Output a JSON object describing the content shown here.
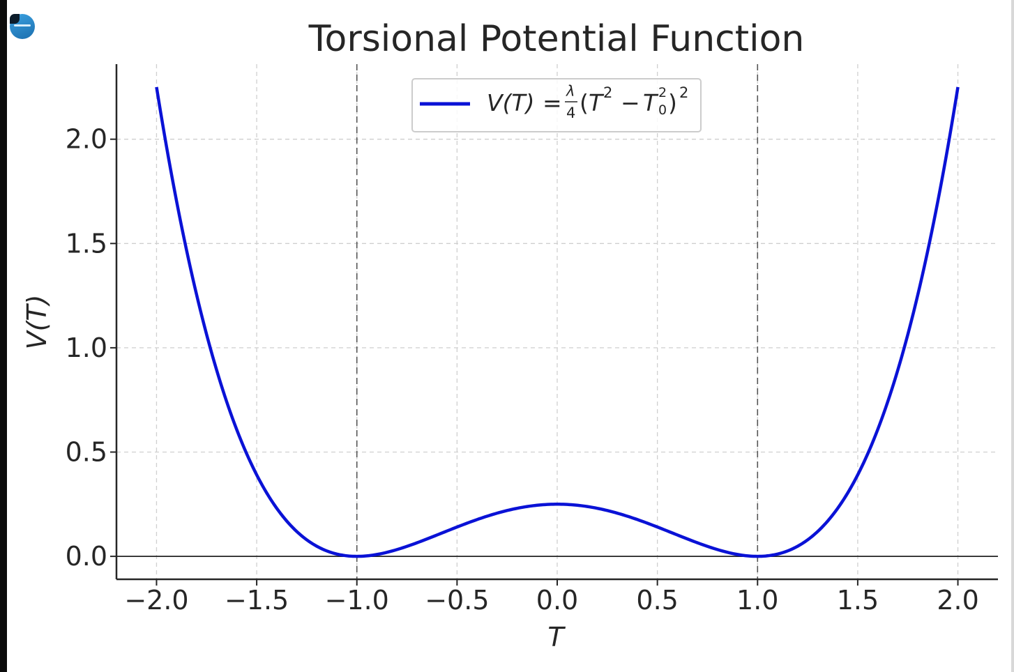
{
  "chart_data": {
    "type": "line",
    "title": "Torsional Potential Function",
    "xlabel": "T",
    "ylabel": "V(T)",
    "xlim": [
      -2.2,
      2.2
    ],
    "ylim": [
      -0.11,
      2.36
    ],
    "xticks": [
      -2.0,
      -1.5,
      -1.0,
      -0.5,
      0.0,
      0.5,
      1.0,
      1.5,
      2.0
    ],
    "xtick_labels": [
      "−2.0",
      "−1.5",
      "−1.0",
      "−0.5",
      "0.0",
      "0.5",
      "1.0",
      "1.5",
      "2.0"
    ],
    "yticks": [
      0.0,
      0.5,
      1.0,
      1.5,
      2.0
    ],
    "ytick_labels": [
      "0.0",
      "0.5",
      "1.0",
      "1.5",
      "2.0"
    ],
    "grid": true,
    "legend_position": "top-center",
    "reference_lines": {
      "vertical_x": [
        -1.0,
        1.0
      ],
      "horizontal_y": [
        0.0
      ]
    },
    "series": [
      {
        "name": "V(T) = λ/4 (T² − T₀²)²",
        "color": "#0a12d6",
        "lambda": 1,
        "T0": 1,
        "x": [
          -2.0,
          -1.9,
          -1.8,
          -1.7,
          -1.6,
          -1.5,
          -1.4,
          -1.3,
          -1.2,
          -1.1,
          -1.0,
          -0.9,
          -0.8,
          -0.7,
          -0.6,
          -0.5,
          -0.4,
          -0.3,
          -0.2,
          -0.1,
          0.0,
          0.1,
          0.2,
          0.3,
          0.4,
          0.5,
          0.6,
          0.7,
          0.8,
          0.9,
          1.0,
          1.1,
          1.2,
          1.3,
          1.4,
          1.5,
          1.6,
          1.7,
          1.8,
          1.9,
          2.0
        ],
        "y": [
          2.25,
          1.703,
          1.254,
          0.893,
          0.608,
          0.391,
          0.23,
          0.119,
          0.048,
          0.011,
          0.0,
          0.009,
          0.032,
          0.065,
          0.102,
          0.141,
          0.176,
          0.207,
          0.23,
          0.245,
          0.25,
          0.245,
          0.23,
          0.207,
          0.176,
          0.141,
          0.102,
          0.065,
          0.032,
          0.009,
          0.0,
          0.011,
          0.048,
          0.119,
          0.23,
          0.391,
          0.608,
          0.893,
          1.254,
          1.703,
          2.25
        ]
      }
    ]
  }
}
